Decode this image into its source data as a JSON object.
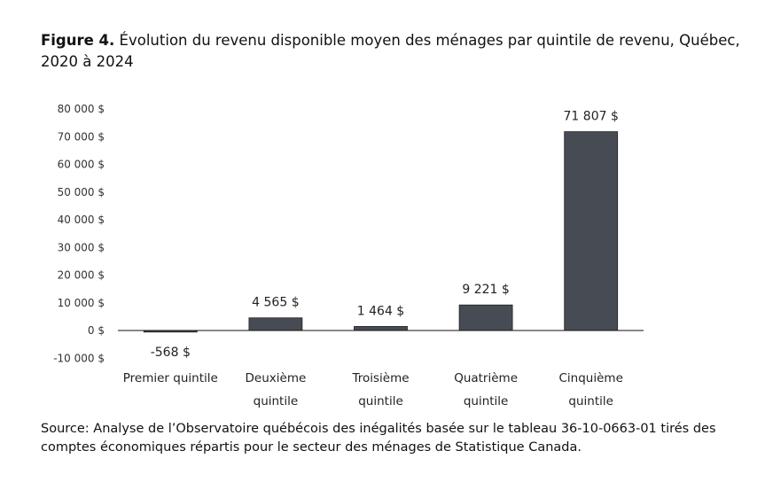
{
  "title_bold": "Figure 4.",
  "title_text": " Évolution du revenu disponible moyen des ménages par quintile de revenu, Québec, 2020 à 2024",
  "source": "Source: Analyse de l’Observatoire québécois des inégalités basée sur le tableau 36-10-0663-01 tirés des comptes économiques répartis pour le secteur des ménages de Statistique Canada.",
  "chart_data": {
    "type": "bar",
    "categories": [
      [
        "Premier quintile"
      ],
      [
        "Deuxième",
        "quintile"
      ],
      [
        "Troisième",
        "quintile"
      ],
      [
        "Quatrième",
        "quintile"
      ],
      [
        "Cinquième",
        "quintile"
      ]
    ],
    "values": [
      -568,
      4565,
      1464,
      9221,
      71807
    ],
    "data_labels": [
      "-568 $",
      "4 565 $",
      "1 464 $",
      "9 221 $",
      "71 807 $"
    ],
    "ylim": [
      -10000,
      80000
    ],
    "yticks": [
      -10000,
      0,
      10000,
      20000,
      30000,
      40000,
      50000,
      60000,
      70000,
      80000
    ],
    "ytick_labels": [
      "-10 000 $",
      "0 $",
      "10 000 $",
      "20 000 $",
      "30 000 $",
      "40 000 $",
      "50 000 $",
      "60 000 $",
      "70 000 $",
      "80 000 $"
    ],
    "grid": false,
    "bar_color": "#474c54"
  }
}
